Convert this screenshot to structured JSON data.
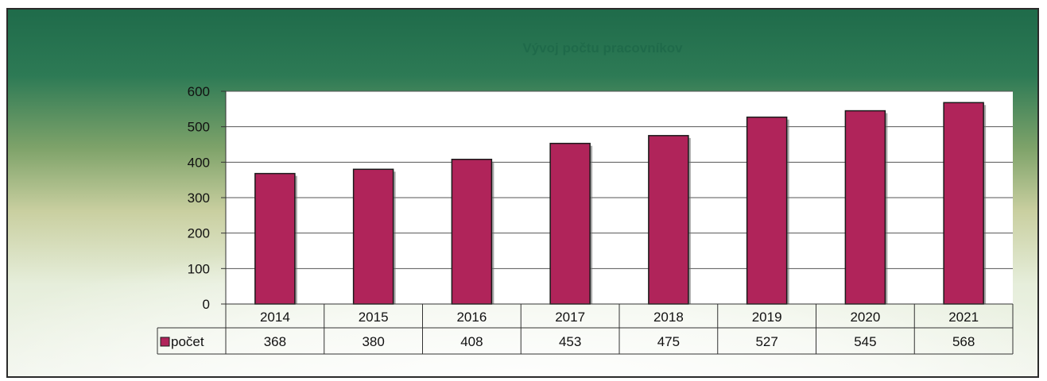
{
  "chart_data": {
    "type": "bar",
    "title": "Vývoj počtu pracovníkov",
    "categories": [
      "2014",
      "2015",
      "2016",
      "2017",
      "2018",
      "2019",
      "2020",
      "2021"
    ],
    "series": [
      {
        "name": "počet",
        "values": [
          368,
          380,
          408,
          453,
          475,
          527,
          545,
          568
        ]
      }
    ],
    "ylim": [
      0,
      600
    ],
    "yticks": [
      "0",
      "100",
      "200",
      "300",
      "400",
      "500",
      "600"
    ],
    "grid": true,
    "data_table": true,
    "colors": {
      "bar": "#b0245a",
      "plot_bg": "#ffffff",
      "title": "#1f6a4a"
    }
  }
}
